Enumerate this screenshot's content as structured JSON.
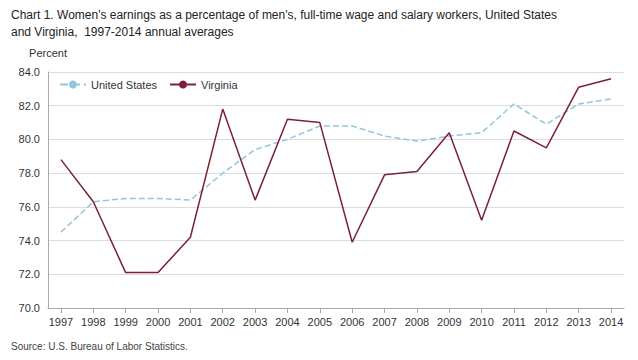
{
  "chart_data": {
    "type": "line",
    "title": "Chart 1. Women's earnings as a percentage of men's, full-time wage and salary workers, United States",
    "subtitle": "and Virginia,  1997-2014 annual averages",
    "ylabel": "Percent",
    "source": "Source: U.S. Bureau of Labor Statistics.",
    "x": [
      1997,
      1998,
      1999,
      2000,
      2001,
      2002,
      2003,
      2004,
      2005,
      2006,
      2007,
      2008,
      2009,
      2010,
      2011,
      2012,
      2013,
      2014
    ],
    "series": [
      {
        "name": "United States",
        "color": "#92c5de",
        "line_style": "dashed",
        "marker": "none",
        "values": [
          74.5,
          76.3,
          76.5,
          76.5,
          76.4,
          78.0,
          79.4,
          80.0,
          80.8,
          80.8,
          80.2,
          79.9,
          80.2,
          80.4,
          82.1,
          80.9,
          82.1,
          82.4
        ]
      },
      {
        "name": "Virginia",
        "color": "#7b1f3a",
        "line_style": "solid",
        "marker": "none",
        "values": [
          78.8,
          76.3,
          72.1,
          72.1,
          74.2,
          81.8,
          76.4,
          81.2,
          81.0,
          73.9,
          77.9,
          78.1,
          80.4,
          75.2,
          80.5,
          79.5,
          83.1,
          83.6
        ]
      }
    ],
    "xlim": [
      1996.6,
      2014.4
    ],
    "xticks": [
      1997,
      1998,
      1999,
      2000,
      2001,
      2002,
      2003,
      2004,
      2005,
      2006,
      2007,
      2008,
      2009,
      2010,
      2011,
      2012,
      2013,
      2014
    ],
    "ylim": [
      70.0,
      84.0
    ],
    "yticks": [
      {
        "value": 70,
        "label": "70.0"
      },
      {
        "value": 72,
        "label": "72.0"
      },
      {
        "value": 74,
        "label": "74.0"
      },
      {
        "value": 76,
        "label": "76.0"
      },
      {
        "value": 78,
        "label": "78.0"
      },
      {
        "value": 80,
        "label": "80.0"
      },
      {
        "value": 82,
        "label": "82.0"
      },
      {
        "value": 84,
        "label": "84.0"
      }
    ],
    "grid": true,
    "legend": "upper left"
  }
}
